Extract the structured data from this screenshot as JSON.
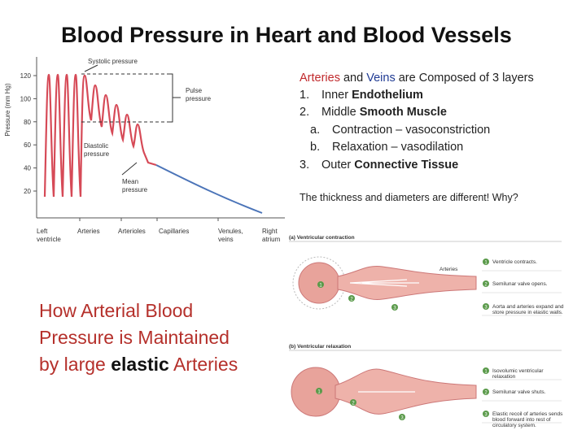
{
  "title": "Blood Pressure in Heart and Blood Vessels",
  "pressure_graph": {
    "y_axis_label": "Pressure (mm Hg)",
    "yticks": [
      20,
      40,
      60,
      80,
      100,
      120
    ],
    "regions": [
      [
        "Left",
        "ventricle"
      ],
      [
        "Arteries"
      ],
      [
        "Arterioles"
      ],
      [
        "Capillaries"
      ],
      [
        "Venules,",
        "veins"
      ],
      [
        "Right",
        "atrium"
      ]
    ],
    "annotations": {
      "systolic": [
        "Systolic pressure"
      ],
      "pulse": [
        "Pulse",
        "pressure"
      ],
      "diastolic": [
        "Diastolic",
        "pressure"
      ],
      "mean": [
        "Mean",
        "pressure"
      ]
    }
  },
  "layers_text": {
    "heading": {
      "arteries": "Arteries",
      "and": " and ",
      "veins": "Veins",
      "rest": " are Composed of 3 layers"
    },
    "layers": [
      {
        "marker": "1.",
        "text": "Inner ",
        "bold": "Endothelium"
      },
      {
        "marker": "2.",
        "text": "Middle ",
        "bold": "Smooth Muscle"
      },
      {
        "marker": "3.",
        "text": "Outer ",
        "bold": "Connective Tissue"
      }
    ],
    "sub_items": [
      {
        "marker": "a.",
        "text": "Contraction – vasoconstriction"
      },
      {
        "marker": "b.",
        "text": "Relaxation – vasodilation"
      }
    ],
    "note": "The thickness and diameters are different! Why?"
  },
  "caption": {
    "line1": "How Arterial Blood",
    "line2": "Pressure is Maintained",
    "line3_start": "by large ",
    "line3_bold": "elastic",
    "line3_end": " Arteries"
  },
  "diagram": {
    "panel_a": {
      "title": "(a) Ventricular contraction",
      "vessel_label": "Arteries",
      "steps": [
        {
          "number": "1",
          "text": [
            "Ventricle contracts."
          ]
        },
        {
          "number": "2",
          "text": [
            "Semilunar valve opens."
          ]
        },
        {
          "number": "3",
          "text": [
            "Aorta and arteries expand and",
            "store pressure in elastic walls."
          ]
        }
      ],
      "callouts": [
        "1",
        "2",
        "3"
      ]
    },
    "panel_b": {
      "title": "(b) Ventricular relaxation",
      "steps": [
        {
          "number": "1",
          "text": [
            "Isovolumic ventricular",
            "relaxation"
          ]
        },
        {
          "number": "2",
          "text": [
            "Semilunar valve shuts."
          ]
        },
        {
          "number": "3",
          "text": [
            "Elastic recoil of arteries sends",
            "blood forward into rest of",
            "circulatory system."
          ]
        }
      ],
      "callouts": [
        "1",
        "2",
        "3"
      ]
    }
  }
}
